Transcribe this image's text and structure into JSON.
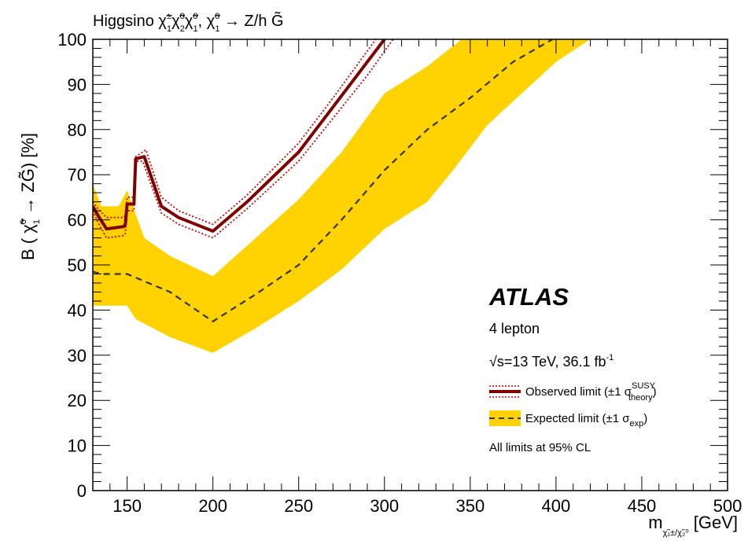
{
  "chart_data": {
    "type": "line",
    "title": "Higgsino χ̃₁^± χ̃₂^0 χ̃₁^0 , χ̃₁^0 → Z/h G̃",
    "title_parts": {
      "prefix": "Higgsino ",
      "sym1": "χ̃",
      "sup1": "±",
      "sub1": "1",
      "sym2": "χ̃",
      "sup2": "0",
      "sub2": "2",
      "sym3": "χ̃",
      "sup3": "0",
      "sub3": "1",
      "sep": ", ",
      "sym4": "χ̃",
      "sup4": "0",
      "sub4": "1",
      "decay": " → Z/h G̃"
    },
    "ylabel": "B ( χ̃₁⁰ → ZG̃) [%]",
    "ylabel_parts": {
      "prefix": "B ( ",
      "sym": "χ̃",
      "sup": "0",
      "sub": "1",
      "decay": " → ZG̃) [%]"
    },
    "xlabel": "m χ̃₁±/χ̃₂⁰ [GeV]",
    "xlabel_parts": {
      "m": "m",
      "sub": "χ̃₁±/χ̃₂⁰",
      "unit": " [GeV]"
    },
    "xlim": [
      130,
      500
    ],
    "ylim": [
      0,
      100
    ],
    "x_ticks": [
      150,
      200,
      250,
      300,
      350,
      400,
      450,
      500
    ],
    "y_ticks": [
      0,
      10,
      20,
      30,
      40,
      50,
      60,
      70,
      80,
      90,
      100
    ],
    "grid": false,
    "legend_position": "right",
    "annotations": {
      "experiment": "ATLAS",
      "channel": "4 lepton",
      "energy_sqrt": "√s",
      "energy_text": "=13 TeV, 36.1 fb",
      "energy_sup": "-1",
      "cl": "All limits at 95% CL"
    },
    "series": [
      {
        "name": "Observed limit (±1 σ theory SUSY)",
        "legend_text": "Observed limit (±1 σ",
        "legend_sup": "SUSY",
        "legend_sub": "theory",
        "legend_close": ")",
        "color": "#7f0000",
        "style": "solid",
        "x": [
          130,
          133,
          138,
          148,
          149,
          150,
          154,
          155,
          160,
          170,
          180,
          200,
          220,
          250,
          270,
          290,
          300
        ],
        "y": [
          63,
          61,
          58,
          58.5,
          59,
          63.5,
          63.5,
          73.5,
          74,
          63,
          60.5,
          57.5,
          64,
          75,
          85,
          95,
          100
        ]
      },
      {
        "name": "Observed +1σ theory",
        "color": "#cc0000",
        "style": "dotted",
        "x": [
          130,
          133,
          138,
          148,
          149,
          150,
          154,
          155,
          161,
          170,
          180,
          200,
          220,
          250,
          270,
          295
        ],
        "y": [
          64,
          62.5,
          60.5,
          60.5,
          61,
          65,
          65,
          74,
          75.5,
          65,
          62,
          59,
          65.5,
          77,
          87,
          100
        ]
      },
      {
        "name": "Observed -1σ theory",
        "color": "#cc0000",
        "style": "dotted",
        "x": [
          130,
          133,
          138,
          148,
          149,
          150,
          154,
          155,
          159,
          170,
          180,
          200,
          220,
          250,
          270,
          290,
          305
        ],
        "y": [
          62,
          59.5,
          56,
          56.5,
          57,
          62,
          62,
          73,
          73,
          61.5,
          59,
          56,
          62.5,
          73,
          82.5,
          92,
          100
        ]
      },
      {
        "name": "Expected limit (±1 σ exp)",
        "legend_text": "Expected limit (±1 σ",
        "legend_sub": "exp",
        "legend_close": ")",
        "color": "#333333",
        "style": "dashed",
        "x": [
          130,
          135,
          150,
          175,
          200,
          225,
          250,
          275,
          300,
          325,
          350,
          375,
          398
        ],
        "y": [
          48.5,
          48,
          48,
          44,
          37.5,
          43.5,
          50,
          60,
          71,
          80,
          87,
          95,
          100
        ]
      }
    ],
    "bands": [
      {
        "name": "Expected ±1σ band",
        "color": "#ffd200",
        "upper": {
          "x": [
            130,
            135,
            145,
            150,
            160,
            175,
            200,
            225,
            250,
            275,
            300,
            325,
            345,
            360,
            380
          ],
          "y": [
            68,
            63,
            63,
            66.5,
            56,
            52,
            47.5,
            56,
            64.5,
            75,
            88,
            94,
            100,
            100,
            100
          ]
        },
        "lower": {
          "x": [
            130,
            135,
            145,
            150,
            155,
            175,
            200,
            225,
            250,
            275,
            300,
            325,
            340,
            360,
            380,
            400,
            420
          ],
          "y": [
            41,
            41,
            41,
            41,
            38,
            34,
            30.5,
            36,
            42,
            49,
            58,
            64,
            71,
            81,
            88,
            95,
            100
          ]
        }
      }
    ]
  }
}
